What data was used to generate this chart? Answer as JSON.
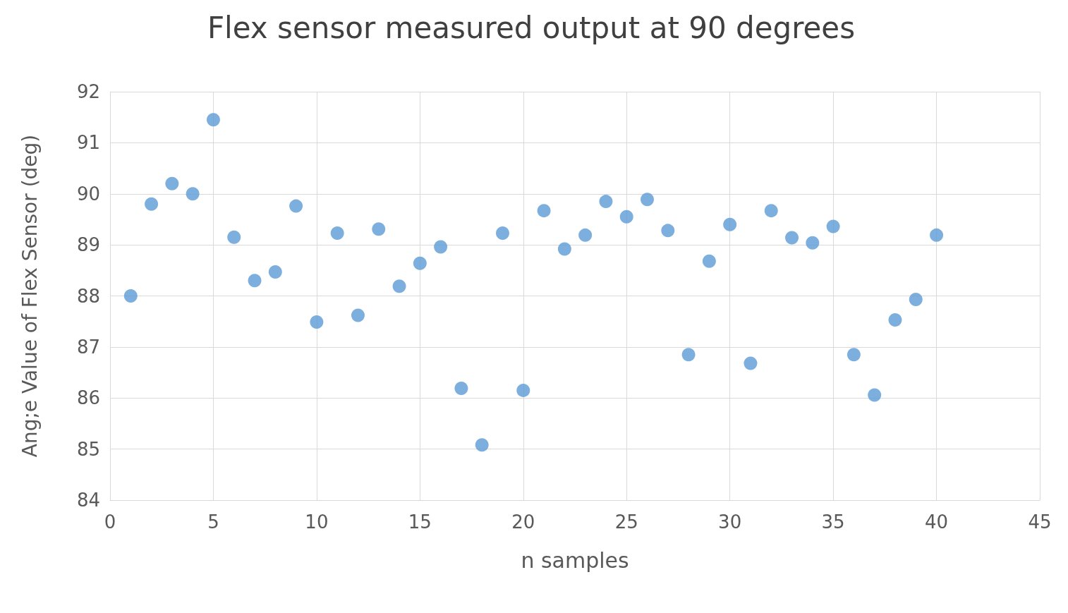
{
  "chart_data": {
    "type": "scatter",
    "title": "Flex sensor measured output at 90 degrees",
    "xlabel": "n samples",
    "ylabel": "Ang;e Value of Flex Sensor (deg)",
    "x": [
      1,
      2,
      3,
      4,
      5,
      6,
      7,
      8,
      9,
      10,
      11,
      12,
      13,
      14,
      15,
      16,
      17,
      18,
      19,
      20,
      21,
      22,
      23,
      24,
      25,
      26,
      27,
      28,
      29,
      30,
      31,
      32,
      33,
      34,
      35,
      36,
      37,
      38,
      39,
      40
    ],
    "series": [
      {
        "color": "#5b9bd5",
        "values": [
          88.0,
          89.8,
          90.2,
          90.0,
          91.45,
          89.15,
          88.3,
          88.47,
          89.76,
          87.49,
          89.23,
          87.62,
          89.31,
          88.19,
          88.64,
          88.96,
          86.19,
          85.08,
          89.23,
          86.15,
          89.67,
          88.92,
          89.19,
          89.85,
          89.55,
          89.89,
          89.28,
          86.85,
          88.68,
          89.4,
          86.68,
          89.67,
          89.14,
          89.04,
          89.36,
          86.85,
          86.06,
          87.53,
          87.93,
          89.19
        ]
      }
    ],
    "xlim": [
      0,
      45
    ],
    "xticks": [
      0,
      5,
      10,
      15,
      20,
      25,
      30,
      35,
      40,
      45
    ],
    "ylim": [
      84,
      92
    ],
    "yticks": [
      84,
      85,
      86,
      87,
      88,
      89,
      90,
      91,
      92
    ],
    "grid": true,
    "marker": "circle"
  }
}
